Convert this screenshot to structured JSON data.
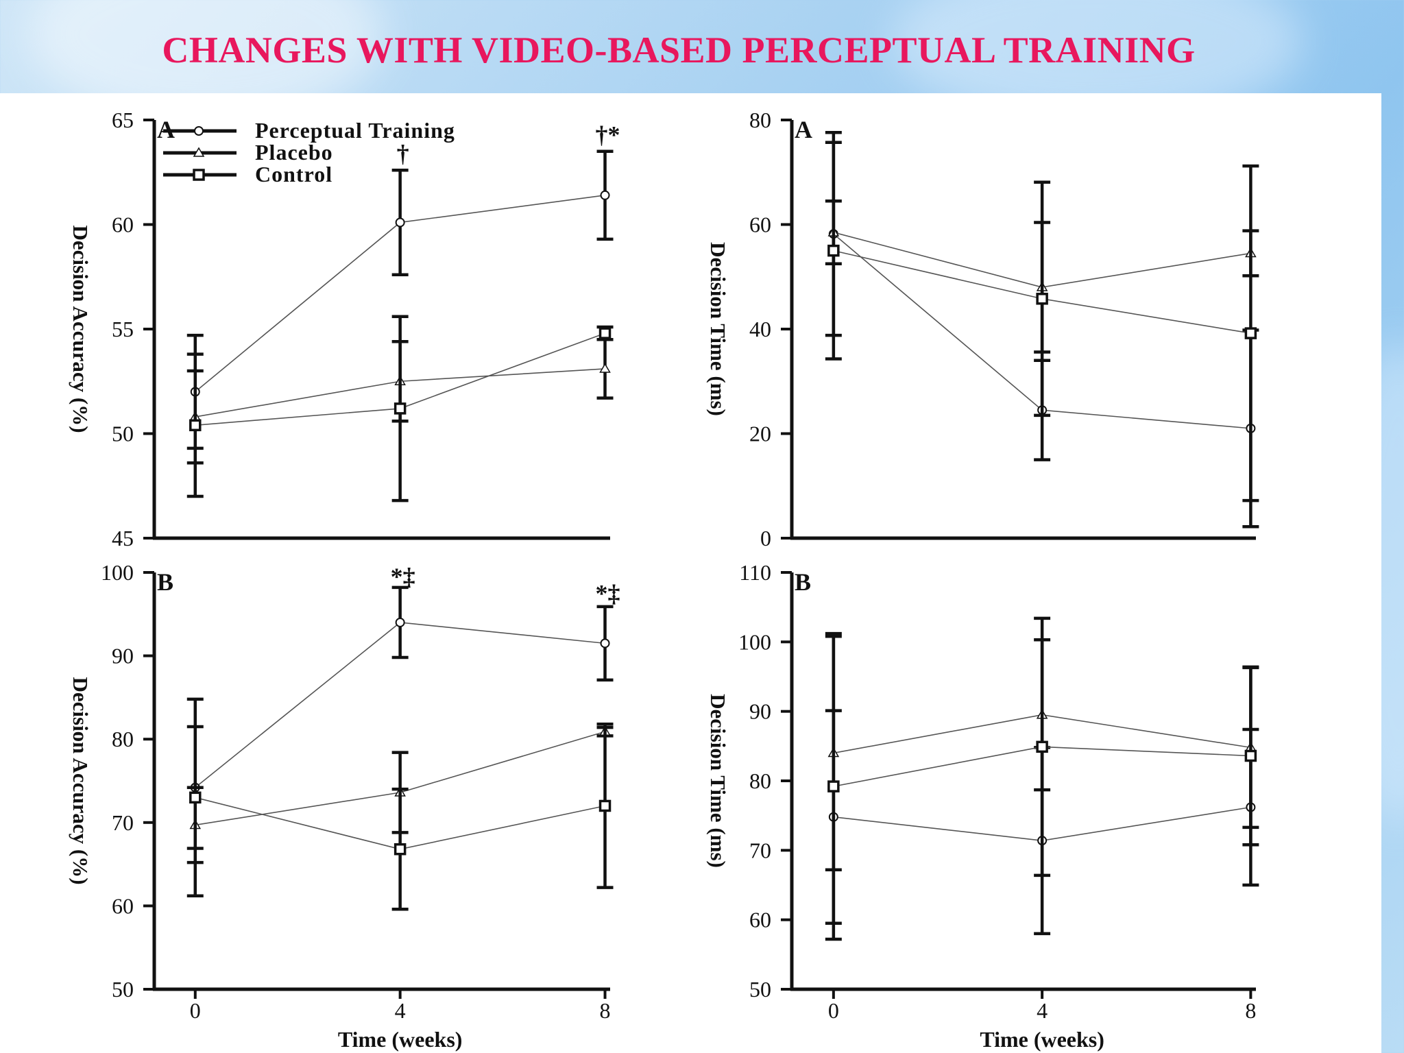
{
  "slide": {
    "title": "CHANGES WITH VIDEO-BASED PERCEPTUAL TRAINING",
    "title_color": "#e8175d"
  },
  "chart_data": [
    {
      "type": "line",
      "panel_label": "A",
      "title": "",
      "xlabel": "",
      "ylabel": "Decision Accuracy (%)",
      "x": [
        0,
        4,
        8
      ],
      "xlim": [
        -0.8,
        8.1
      ],
      "ylim": [
        45,
        65
      ],
      "yticks": [
        45,
        50,
        55,
        60,
        65
      ],
      "xticks": [],
      "legend": {
        "position": "top-left",
        "entries": [
          {
            "name": "Perceptual Training",
            "marker": "circle"
          },
          {
            "name": "Placebo",
            "marker": "triangle"
          },
          {
            "name": "Control",
            "marker": "square"
          }
        ]
      },
      "series": [
        {
          "name": "Perceptual Training",
          "marker": "circle",
          "values": [
            52.0,
            60.1,
            61.4
          ],
          "errors": [
            2.7,
            2.5,
            2.1
          ]
        },
        {
          "name": "Placebo",
          "marker": "triangle",
          "values": [
            50.8,
            52.5,
            53.1
          ],
          "errors": [
            2.2,
            1.9,
            1.4
          ]
        },
        {
          "name": "Control",
          "marker": "square",
          "values": [
            50.4,
            51.2,
            54.8
          ],
          "errors": [
            3.4,
            4.4,
            0.3
          ]
        }
      ],
      "annotations": [
        {
          "x": 4,
          "y": 63.0,
          "text": "†"
        },
        {
          "x": 8,
          "y": 63.9,
          "text": "†*"
        }
      ]
    },
    {
      "type": "line",
      "panel_label": "A",
      "title": "",
      "xlabel": "",
      "ylabel": "Decision Time (ms)",
      "x": [
        0,
        4,
        8
      ],
      "xlim": [
        -0.8,
        8.1
      ],
      "ylim": [
        0,
        80
      ],
      "yticks": [
        0,
        20,
        40,
        60,
        80
      ],
      "xticks": [],
      "series": [
        {
          "name": "Perceptual Training",
          "marker": "circle",
          "values": [
            58.2,
            24.5,
            21.0
          ],
          "errors": [
            19.4,
            9.5,
            18.8
          ]
        },
        {
          "name": "Placebo",
          "marker": "triangle",
          "values": [
            58.5,
            48.0,
            54.5
          ],
          "errors": [
            6.0,
            12.4,
            4.3
          ]
        },
        {
          "name": "Control",
          "marker": "square",
          "values": [
            55.0,
            45.8,
            39.2
          ],
          "errors": [
            20.7,
            22.3,
            32.0
          ]
        }
      ]
    },
    {
      "type": "line",
      "panel_label": "B",
      "title": "",
      "xlabel": "Time (weeks)",
      "ylabel": "Decision Accuracy (%)",
      "x": [
        0,
        4,
        8
      ],
      "xlim": [
        -0.8,
        8.1
      ],
      "ylim": [
        50,
        100
      ],
      "yticks": [
        50,
        60,
        70,
        80,
        90,
        100
      ],
      "xticks": [
        0,
        4,
        8
      ],
      "series": [
        {
          "name": "Perceptual Training",
          "marker": "circle",
          "values": [
            74.2,
            94.0,
            91.5
          ],
          "errors": [
            7.3,
            4.2,
            4.4
          ]
        },
        {
          "name": "Placebo",
          "marker": "triangle",
          "values": [
            69.7,
            73.6,
            80.9
          ],
          "errors": [
            4.5,
            4.8,
            0.5
          ]
        },
        {
          "name": "Control",
          "marker": "square",
          "values": [
            73.0,
            66.8,
            72.0
          ],
          "errors": [
            11.8,
            7.2,
            9.8
          ]
        }
      ],
      "annotations": [
        {
          "x": 4,
          "y": 98.5,
          "text": "*‡"
        },
        {
          "x": 8,
          "y": 96.5,
          "text": "*‡"
        }
      ]
    },
    {
      "type": "line",
      "panel_label": "B",
      "title": "",
      "xlabel": "Time (weeks)",
      "ylabel": "Decision Time (ms)",
      "x": [
        0,
        4,
        8
      ],
      "xlim": [
        -0.8,
        8.1
      ],
      "ylim": [
        50,
        110
      ],
      "yticks": [
        50,
        60,
        70,
        80,
        90,
        100,
        110
      ],
      "xticks": [
        0,
        4,
        8
      ],
      "series": [
        {
          "name": "Perceptual Training",
          "marker": "circle",
          "values": [
            74.8,
            71.4,
            76.2
          ],
          "errors": [
            15.3,
            13.4,
            11.2
          ]
        },
        {
          "name": "Placebo",
          "marker": "triangle",
          "values": [
            84.0,
            89.5,
            84.8
          ],
          "errors": [
            16.8,
            10.8,
            11.5
          ]
        },
        {
          "name": "Control",
          "marker": "square",
          "values": [
            79.2,
            84.9,
            83.6
          ],
          "errors": [
            22.0,
            18.5,
            12.8
          ]
        }
      ]
    }
  ]
}
